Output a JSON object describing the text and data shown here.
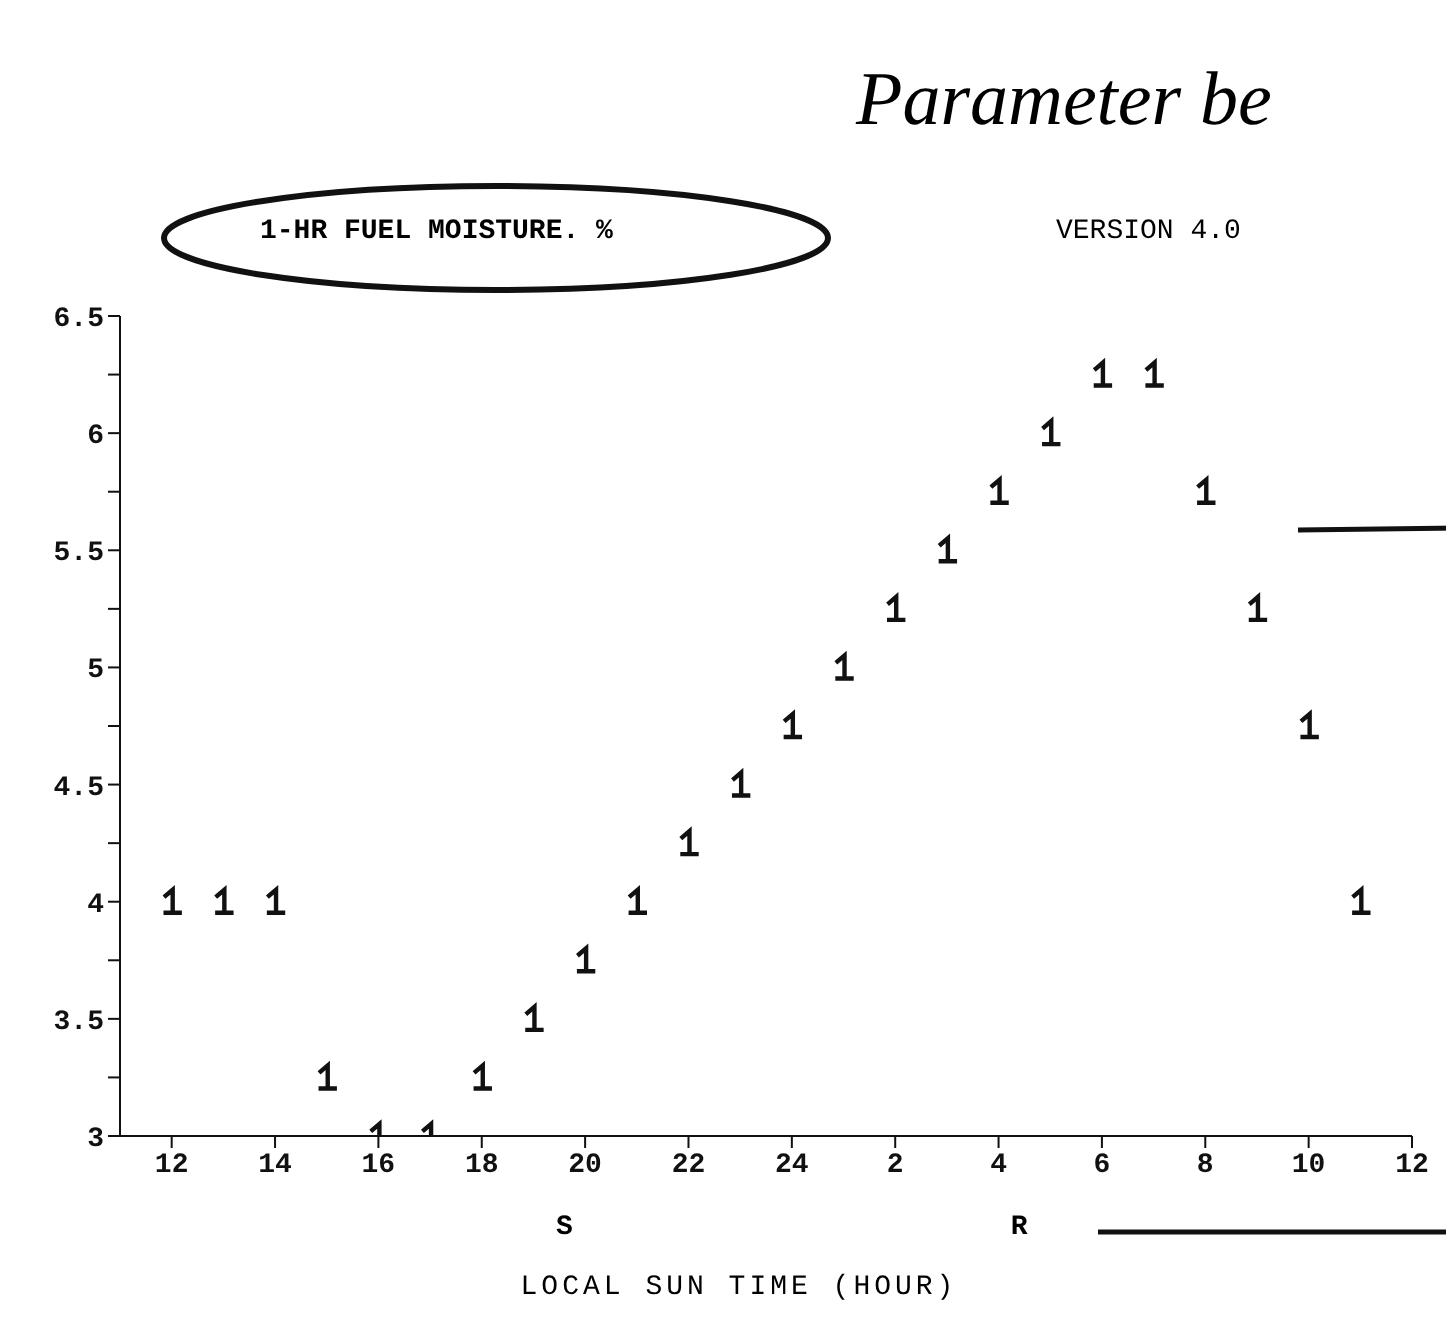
{
  "chart_data": {
    "type": "scatter",
    "title": "1-HR FUEL MOISTURE. %",
    "subtitle": "VERSION 4.0",
    "xlabel": "LOCAL SUN TIME (HOUR)",
    "annotations": [
      "Parameter be",
      "S",
      "R"
    ],
    "categories": [
      "12",
      null,
      "14",
      null,
      "16",
      null,
      "18",
      null,
      "20",
      null,
      "22",
      null,
      "24",
      null,
      "2",
      null,
      "4",
      null,
      "6",
      null,
      "8",
      null,
      "10",
      null,
      "12"
    ],
    "series": [
      {
        "color": "#111111",
        "values": [
          4,
          4,
          4,
          3.25,
          3,
          3,
          3.25,
          3.5,
          3.75,
          4,
          4.25,
          4.5,
          4.75,
          5,
          5.25,
          5.5,
          5.75,
          6,
          6.25,
          6.25,
          5.75,
          5.25,
          4.75,
          4,
          null
        ]
      }
    ],
    "ylim": [
      3,
      6.5
    ],
    "yticks": [
      3,
      {
        "value": 3.25,
        "label": null
      },
      3.5,
      {
        "value": 3.75,
        "label": null
      },
      4,
      {
        "value": 4.25,
        "label": null
      },
      4.5,
      {
        "value": 4.75,
        "label": null
      },
      5,
      {
        "value": 5.25,
        "label": null
      },
      5.5,
      {
        "value": 5.75,
        "label": null
      },
      6,
      {
        "value": 6.25,
        "label": null
      },
      6.5
    ],
    "grid": false
  }
}
